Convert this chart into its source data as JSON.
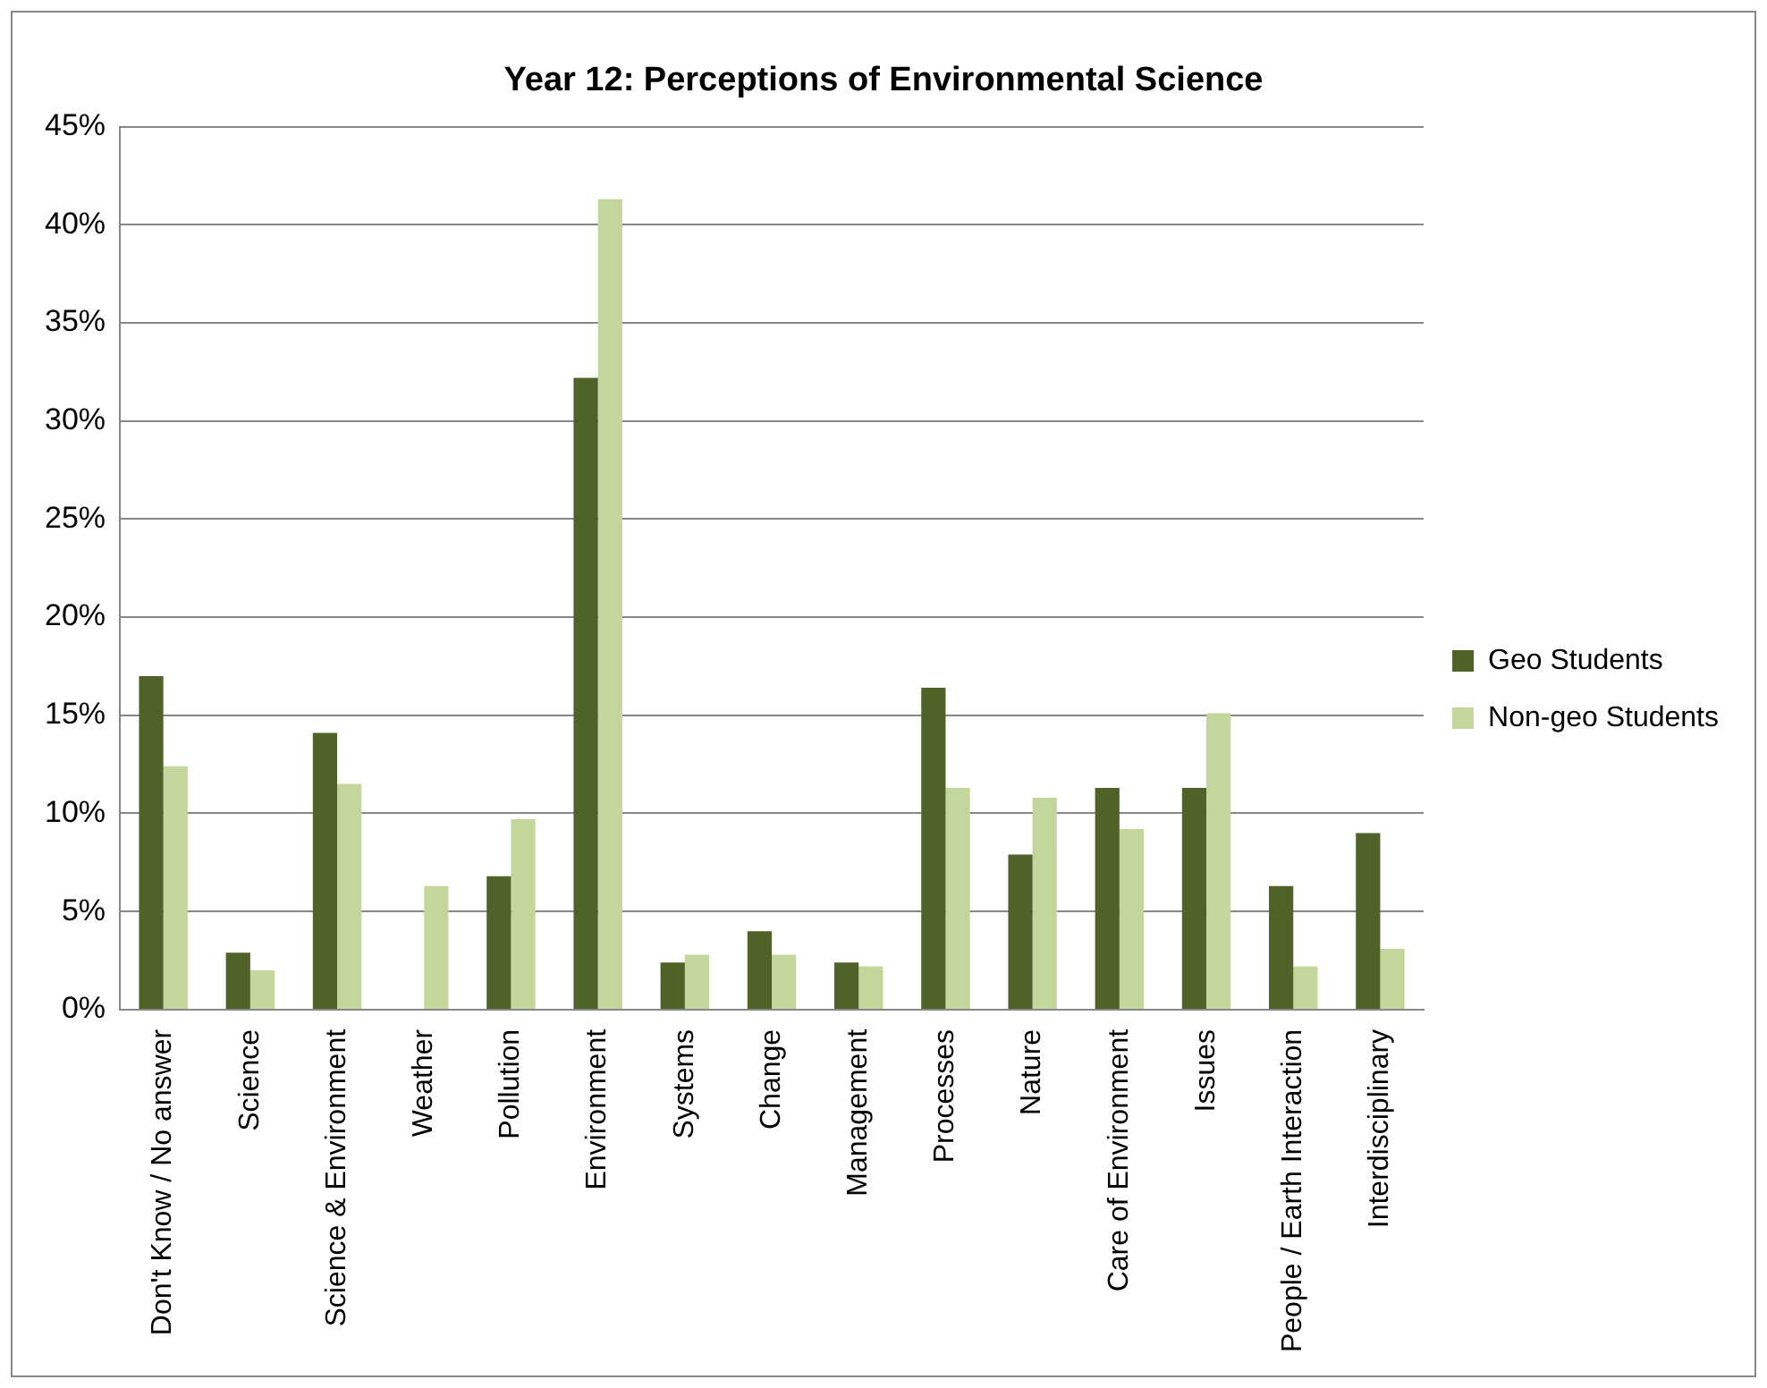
{
  "chart_data": {
    "type": "bar",
    "title": "Year 12: Perceptions of Environmental Science",
    "categories": [
      "Don't Know / No answer",
      "Science",
      "Science & Environment",
      "Weather",
      "Pollution",
      "Environment",
      "Systems",
      "Change",
      "Management",
      "Processes",
      "Nature",
      "Care of Environment",
      "Issues",
      "People / Earth Interaction",
      "Interdisciplinary"
    ],
    "series": [
      {
        "name": "Geo Students",
        "color": "#4f6228",
        "values": [
          17.0,
          2.9,
          14.1,
          0,
          6.8,
          32.2,
          2.4,
          4.0,
          2.4,
          16.4,
          7.9,
          11.3,
          11.3,
          6.3,
          9.0
        ]
      },
      {
        "name": "Non-geo Students",
        "color": "#c3d69b",
        "values": [
          12.4,
          2.0,
          11.5,
          6.3,
          9.7,
          41.3,
          2.8,
          2.8,
          2.2,
          11.3,
          10.8,
          9.2,
          15.1,
          2.2,
          3.1
        ]
      }
    ],
    "ylim": [
      0,
      45
    ],
    "yticks": [
      {
        "value": 0,
        "label": "0%"
      },
      {
        "value": 5,
        "label": "5%"
      },
      {
        "value": 10,
        "label": "10%"
      },
      {
        "value": 15,
        "label": "15%"
      },
      {
        "value": 20,
        "label": "20%"
      },
      {
        "value": 25,
        "label": "25%"
      },
      {
        "value": 30,
        "label": "30%"
      },
      {
        "value": 35,
        "label": "35%"
      },
      {
        "value": 40,
        "label": "40%"
      },
      {
        "value": 45,
        "label": "45%"
      }
    ],
    "grid": "y",
    "legend": "right"
  }
}
